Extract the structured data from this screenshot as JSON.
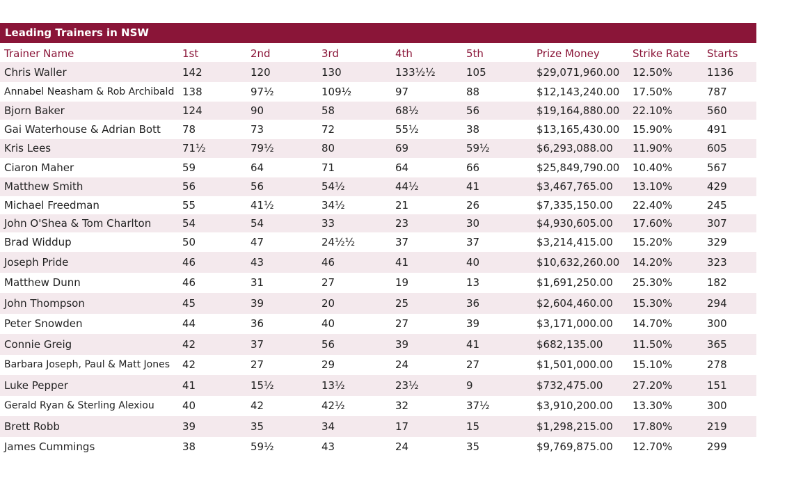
{
  "table": {
    "title": "Leading Trainers in NSW",
    "header": [
      "Trainer Name",
      "1st",
      "2nd",
      "3rd",
      "4th",
      "5th",
      "Prize Money",
      "Strike Rate",
      "Starts"
    ],
    "rows": [
      [
        "Chris Waller",
        "142",
        "120",
        "130",
        "133½½",
        "105",
        "$29,071,960.00",
        "12.50%",
        "1136"
      ],
      [
        "Annabel Neasham & Rob Archibald",
        "138",
        "97½",
        "109½",
        "97",
        "88",
        "$12,143,240.00",
        "17.50%",
        "787"
      ],
      [
        "Bjorn Baker",
        "124",
        "90",
        "58",
        "68½",
        "56",
        "$19,164,880.00",
        "22.10%",
        "560"
      ],
      [
        "Gai Waterhouse & Adrian Bott",
        "78",
        "73",
        "72",
        "55½",
        "38",
        "$13,165,430.00",
        "15.90%",
        "491"
      ],
      [
        "Kris Lees",
        "71½",
        "79½",
        "80",
        "69",
        "59½",
        "$6,293,088.00",
        "11.90%",
        "605"
      ],
      [
        "Ciaron Maher",
        "59",
        "64",
        "71",
        "64",
        "66",
        "$25,849,790.00",
        "10.40%",
        "567"
      ],
      [
        "Matthew Smith",
        "56",
        "56",
        "54½",
        "44½",
        "41",
        "$3,467,765.00",
        "13.10%",
        "429"
      ],
      [
        "Michael Freedman",
        "55",
        "41½",
        "34½",
        "21",
        "26",
        "$7,335,150.00",
        "22.40%",
        "245"
      ],
      [
        "John O'Shea & Tom Charlton",
        "54",
        "54",
        "33",
        "23",
        "30",
        "$4,930,605.00",
        "17.60%",
        "307"
      ],
      [
        "Brad Widdup",
        "50",
        "47",
        "24½½",
        "37",
        "37",
        "$3,214,415.00",
        "15.20%",
        "329"
      ],
      [
        "Joseph Pride",
        "46",
        "43",
        "46",
        "41",
        "40",
        "$10,632,260.00",
        "14.20%",
        "323"
      ],
      [
        "Matthew Dunn",
        "46",
        "31",
        "27",
        "19",
        "13",
        "$1,691,250.00",
        "25.30%",
        "182"
      ],
      [
        "John Thompson",
        "45",
        "39",
        "20",
        "25",
        "36",
        "$2,604,460.00",
        "15.30%",
        "294"
      ],
      [
        "Peter Snowden",
        "44",
        "36",
        "40",
        "27",
        "39",
        "$3,171,000.00",
        "14.70%",
        "300"
      ],
      [
        "Connie Greig",
        "42",
        "37",
        "56",
        "39",
        "41",
        "$682,135.00",
        "11.50%",
        "365"
      ],
      [
        "Barbara Joseph, Paul & Matt Jones",
        "42",
        "27",
        "29",
        "24",
        "27",
        "$1,501,000.00",
        "15.10%",
        "278"
      ],
      [
        "Luke Pepper",
        "41",
        "15½",
        "13½",
        "23½",
        "9",
        "$732,475.00",
        "27.20%",
        "151"
      ],
      [
        "Gerald Ryan & Sterling Alexiou",
        "40",
        "42",
        "42½",
        "32",
        "37½",
        "$3,910,200.00",
        "13.30%",
        "300"
      ],
      [
        "Brett Robb",
        "39",
        "35",
        "34",
        "17",
        "15",
        "$1,298,215.00",
        "17.80%",
        "219"
      ],
      [
        "James Cummings",
        "38",
        "59½",
        "43",
        "24",
        "35",
        "$9,769,875.00",
        "12.70%",
        "299"
      ]
    ]
  }
}
